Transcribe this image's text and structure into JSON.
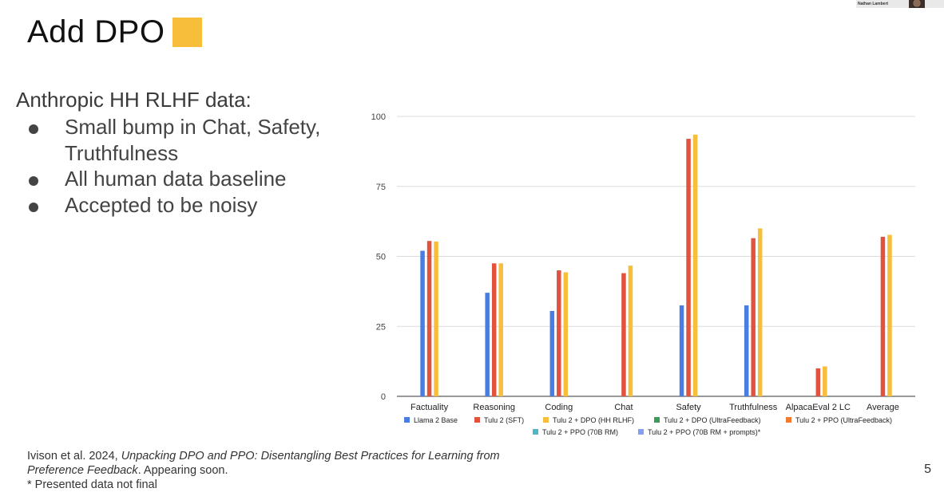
{
  "slide": {
    "title": "Add DPO",
    "title_square_color": "#F6BE3A",
    "bullets_heading": "Anthropic HH RLHF data:",
    "bullets": [
      "Small bump in Chat, Safety, Truthfulness",
      "All human data baseline",
      "Accepted to be noisy"
    ],
    "citation_prefix": "Ivison et al. 2024, ",
    "citation_title": "Unpacking DPO and PPO: Disentangling Best Practices for Learning from Preference Feedback",
    "citation_suffix": ". Appearing soon.",
    "note": "* Presented data not final",
    "page_number": "5",
    "presenter_name": "Nathan Lambert"
  },
  "chart_data": {
    "type": "bar",
    "categories": [
      "Factuality",
      "Reasoning",
      "Coding",
      "Chat",
      "Safety",
      "Truthfulness",
      "AlpacaEval 2 LC",
      "Average"
    ],
    "ylim": [
      0,
      100
    ],
    "yticks": [
      0,
      25,
      50,
      75,
      100
    ],
    "grid": true,
    "legend_position": "bottom",
    "series": [
      {
        "name": "Llama 2 Base",
        "color": "#4A7DE1",
        "values": [
          52,
          37,
          30.5,
          null,
          32.5,
          32.5,
          null,
          null
        ]
      },
      {
        "name": "Tulu 2 (SFT)",
        "color": "#E2533F",
        "values": [
          55.5,
          47.5,
          45,
          44,
          92,
          56.5,
          10,
          57
        ]
      },
      {
        "name": "Tulu 2 + DPO (HH RLHF)",
        "color": "#F6BE3A",
        "values": [
          55.3,
          47.5,
          44.3,
          46.7,
          93.5,
          60,
          10.7,
          57.7
        ]
      },
      {
        "name": "Tulu 2 + DPO (UltraFeedback)",
        "color": "#3E9A59",
        "values": [
          null,
          null,
          null,
          null,
          null,
          null,
          null,
          null
        ]
      },
      {
        "name": "Tulu 2 + PPO (UltraFeedback)",
        "color": "#F2792E",
        "values": [
          null,
          null,
          null,
          null,
          null,
          null,
          null,
          null
        ]
      },
      {
        "name": "Tulu 2 + PPO (70B RM)",
        "color": "#4CB7C6",
        "values": [
          null,
          null,
          null,
          null,
          null,
          null,
          null,
          null
        ]
      },
      {
        "name": "Tulu 2 + PPO (70B RM + prompts)*",
        "color": "#7FA1EF",
        "values": [
          null,
          null,
          null,
          null,
          null,
          null,
          null,
          null
        ]
      }
    ]
  }
}
